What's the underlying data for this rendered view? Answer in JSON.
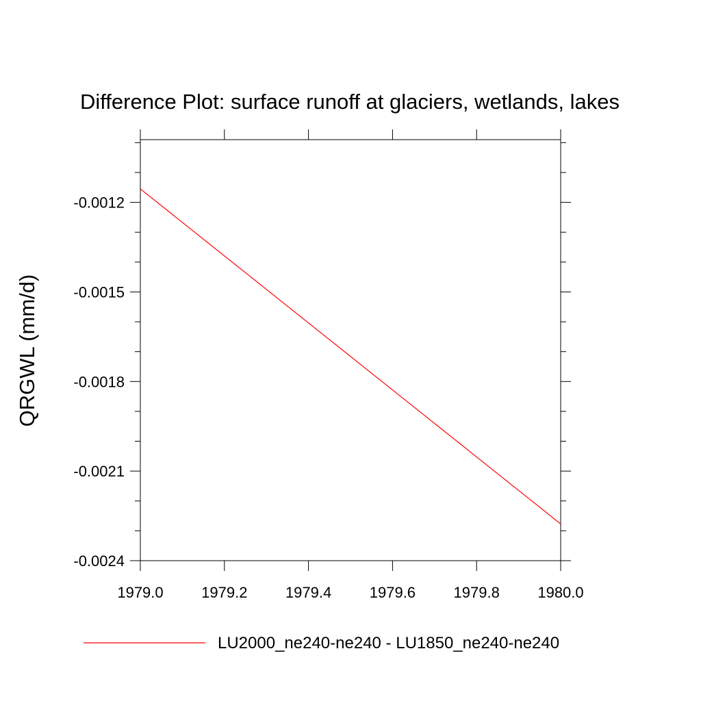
{
  "chart_data": {
    "type": "line",
    "title": "Difference Plot: surface runoff at glaciers, wetlands, lakes",
    "xlabel": "",
    "ylabel": "QRGWL  (mm/d)",
    "xlim": [
      1979.0,
      1980.0
    ],
    "ylim": [
      -0.0024,
      -0.00099
    ],
    "x_ticks": [
      1979.0,
      1979.2,
      1979.4,
      1979.6,
      1979.8,
      1980.0
    ],
    "x_tick_labels": [
      "1979.0",
      "1979.2",
      "1979.4",
      "1979.6",
      "1979.8",
      "1980.0"
    ],
    "y_ticks": [
      -0.0012,
      -0.0015,
      -0.0018,
      -0.0021,
      -0.0024
    ],
    "y_tick_labels": [
      "-0.0012",
      "-0.0015",
      "-0.0018",
      "-0.0021",
      "-0.0024"
    ],
    "grid": false,
    "legend_position": "bottom",
    "series": [
      {
        "name": "LU2000_ne240-ne240 - LU1850_ne240-ne240",
        "color": "#ff0000",
        "x": [
          1979.0,
          1980.0
        ],
        "y": [
          -0.001155,
          -0.002277
        ]
      }
    ]
  }
}
